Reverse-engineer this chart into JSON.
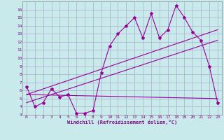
{
  "xlabel": "Windchill (Refroidissement éolien,°C)",
  "bg_color": "#c8eaea",
  "grid_color": "#aaaacc",
  "line_color": "#990099",
  "xlim": [
    -0.5,
    23.5
  ],
  "ylim": [
    3,
    17
  ],
  "xticks": [
    0,
    1,
    2,
    3,
    4,
    5,
    6,
    7,
    8,
    9,
    10,
    11,
    12,
    13,
    14,
    15,
    16,
    17,
    18,
    19,
    20,
    21,
    22,
    23
  ],
  "yticks": [
    3,
    4,
    5,
    6,
    7,
    8,
    9,
    10,
    11,
    12,
    13,
    14,
    15,
    16
  ],
  "series1_x": [
    0,
    1,
    2,
    3,
    4,
    5,
    6,
    7,
    8,
    9,
    10,
    11,
    12,
    13,
    14,
    15,
    16,
    17,
    18,
    19,
    20,
    21,
    22,
    23
  ],
  "series1_y": [
    6.5,
    4.0,
    4.5,
    6.2,
    5.2,
    5.5,
    3.2,
    3.2,
    3.5,
    8.2,
    11.5,
    13.0,
    14.0,
    15.0,
    12.5,
    15.5,
    12.5,
    13.5,
    16.5,
    15.0,
    13.2,
    12.2,
    9.0,
    4.5
  ],
  "series2_x": [
    0,
    23
  ],
  "series2_y": [
    5.5,
    5.0
  ],
  "series3_x": [
    0,
    23
  ],
  "series3_y": [
    4.5,
    12.2
  ],
  "series4_x": [
    0,
    23
  ],
  "series4_y": [
    5.5,
    13.5
  ],
  "marker": "*",
  "markersize": 3,
  "linewidth": 0.8,
  "label_fontsize": 5,
  "tick_fontsize": 4.5
}
